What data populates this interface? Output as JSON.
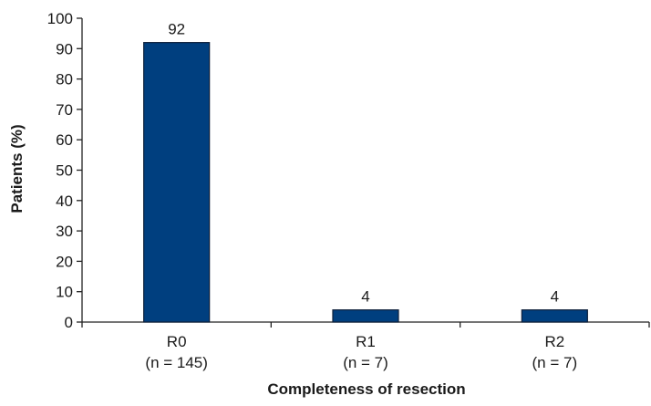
{
  "chart_data": {
    "type": "bar",
    "title": "",
    "xlabel": "Completeness of resection",
    "ylabel": "Patients (%)",
    "ylim": [
      0,
      100
    ],
    "yticks": [
      0,
      10,
      20,
      30,
      40,
      50,
      60,
      70,
      80,
      90,
      100
    ],
    "categories": [
      {
        "label": "R0",
        "sublabel": "(n = 145)"
      },
      {
        "label": "R1",
        "sublabel": "(n = 7)"
      },
      {
        "label": "R2",
        "sublabel": "(n = 7)"
      }
    ],
    "values": [
      92,
      4,
      4
    ],
    "data_labels": [
      "92",
      "4",
      "4"
    ],
    "bar_color": "#003F7F",
    "grid": false,
    "legend": "none"
  }
}
